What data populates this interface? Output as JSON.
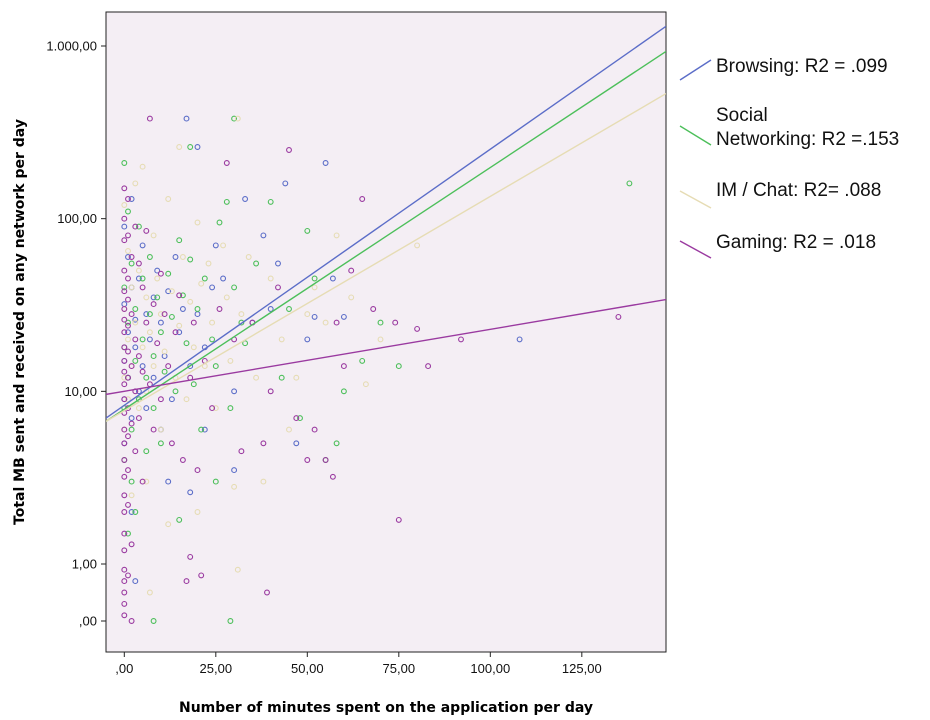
{
  "chart_data": {
    "type": "scatter",
    "title": "",
    "xlabel": "Number of minutes spent on the application per day",
    "ylabel": "Total MB sent and received on any network per day",
    "xlim": [
      -5,
      148
    ],
    "y_scale": "log",
    "xticks": [
      {
        "value": 0,
        "label": ",00"
      },
      {
        "value": 25,
        "label": "25,00"
      },
      {
        "value": 50,
        "label": "50,00"
      },
      {
        "value": 75,
        "label": "75,00"
      },
      {
        "value": 100,
        "label": "100,00"
      },
      {
        "value": 125,
        "label": "125,00"
      }
    ],
    "yticks": [
      {
        "value": 0,
        "label": ",00"
      },
      {
        "value": 1,
        "label": "1,00"
      },
      {
        "value": 10,
        "label": "10,00"
      },
      {
        "value": 100,
        "label": "100,00"
      },
      {
        "value": 1000,
        "label": "1.000,00"
      }
    ],
    "grid": false,
    "legend_position": "right",
    "background": "#f4eef4",
    "series": [
      {
        "name": "Browsing",
        "legend_label": "Browsing: R2 = .099",
        "color": "#5b6dc8",
        "fit_line": {
          "x": [
            -5,
            148
          ],
          "y": [
            7.0,
            1300
          ]
        },
        "points": [
          [
            0,
            15
          ],
          [
            0,
            9
          ],
          [
            0,
            32
          ],
          [
            0,
            5
          ],
          [
            0,
            90
          ],
          [
            1,
            22
          ],
          [
            1,
            60
          ],
          [
            1,
            12
          ],
          [
            2,
            40
          ],
          [
            2,
            7
          ],
          [
            2,
            130
          ],
          [
            3,
            18
          ],
          [
            3,
            26
          ],
          [
            4,
            10
          ],
          [
            4,
            45
          ],
          [
            5,
            14
          ],
          [
            5,
            70
          ],
          [
            6,
            8
          ],
          [
            6,
            28
          ],
          [
            7,
            20
          ],
          [
            8,
            12
          ],
          [
            8,
            35
          ],
          [
            9,
            50
          ],
          [
            10,
            6
          ],
          [
            10,
            25
          ],
          [
            11,
            16
          ],
          [
            12,
            38
          ],
          [
            13,
            9
          ],
          [
            14,
            60
          ],
          [
            15,
            22
          ],
          [
            16,
            30
          ],
          [
            17,
            380
          ],
          [
            18,
            14
          ],
          [
            20,
            260
          ],
          [
            20,
            28
          ],
          [
            22,
            18
          ],
          [
            24,
            40
          ],
          [
            25,
            70
          ],
          [
            27,
            45
          ],
          [
            30,
            10
          ],
          [
            33,
            130
          ],
          [
            35,
            25
          ],
          [
            38,
            80
          ],
          [
            40,
            30
          ],
          [
            42,
            55
          ],
          [
            44,
            160
          ],
          [
            47,
            5
          ],
          [
            50,
            20
          ],
          [
            52,
            27
          ],
          [
            55,
            210
          ],
          [
            57,
            45
          ],
          [
            60,
            27
          ],
          [
            108,
            20
          ],
          [
            3,
            0.7
          ],
          [
            2,
            2
          ],
          [
            12,
            3
          ],
          [
            18,
            2.6
          ],
          [
            22,
            6
          ],
          [
            30,
            3.5
          ]
        ]
      },
      {
        "name": "Social Networking",
        "legend_label": "Social Networking: R2 =.153",
        "color": "#4cbf5a",
        "fit_line": {
          "x": [
            -5,
            148
          ],
          "y": [
            6.7,
            930
          ]
        },
        "points": [
          [
            0,
            210
          ],
          [
            0,
            40
          ],
          [
            0,
            18
          ],
          [
            0,
            8
          ],
          [
            0,
            4
          ],
          [
            1,
            110
          ],
          [
            1,
            25
          ],
          [
            1,
            12
          ],
          [
            2,
            55
          ],
          [
            2,
            6
          ],
          [
            2,
            3
          ],
          [
            3,
            30
          ],
          [
            3,
            15
          ],
          [
            4,
            90
          ],
          [
            4,
            9
          ],
          [
            5,
            45
          ],
          [
            5,
            20
          ],
          [
            6,
            12
          ],
          [
            6,
            4.5
          ],
          [
            7,
            60
          ],
          [
            7,
            28
          ],
          [
            8,
            16
          ],
          [
            8,
            8
          ],
          [
            9,
            35
          ],
          [
            10,
            22
          ],
          [
            10,
            5
          ],
          [
            11,
            13
          ],
          [
            12,
            48
          ],
          [
            13,
            27
          ],
          [
            14,
            10
          ],
          [
            15,
            75
          ],
          [
            16,
            36
          ],
          [
            17,
            19
          ],
          [
            18,
            260
          ],
          [
            18,
            58
          ],
          [
            19,
            11
          ],
          [
            20,
            30
          ],
          [
            21,
            6
          ],
          [
            22,
            45
          ],
          [
            24,
            20
          ],
          [
            25,
            14
          ],
          [
            26,
            95
          ],
          [
            28,
            125
          ],
          [
            29,
            8
          ],
          [
            29,
            0
          ],
          [
            30,
            380
          ],
          [
            30,
            40
          ],
          [
            32,
            25
          ],
          [
            33,
            19
          ],
          [
            36,
            55
          ],
          [
            40,
            125
          ],
          [
            43,
            12
          ],
          [
            45,
            30
          ],
          [
            48,
            7
          ],
          [
            50,
            85
          ],
          [
            52,
            45
          ],
          [
            55,
            4
          ],
          [
            58,
            5
          ],
          [
            60,
            10
          ],
          [
            65,
            15
          ],
          [
            70,
            25
          ],
          [
            75,
            14
          ],
          [
            138,
            160
          ],
          [
            1,
            1.5
          ],
          [
            3,
            2
          ],
          [
            8,
            0
          ],
          [
            15,
            1.8
          ],
          [
            25,
            3
          ]
        ]
      },
      {
        "name": "IM / Chat",
        "legend_label": "IM / Chat: R2= .088",
        "color": "#e6dcb4",
        "fit_line": {
          "x": [
            -5,
            148
          ],
          "y": [
            6.7,
            530
          ]
        },
        "points": [
          [
            0,
            120
          ],
          [
            0,
            30
          ],
          [
            0,
            12
          ],
          [
            0,
            6
          ],
          [
            1,
            65
          ],
          [
            1,
            20
          ],
          [
            1,
            9
          ],
          [
            2,
            40
          ],
          [
            2,
            14
          ],
          [
            3,
            160
          ],
          [
            3,
            25
          ],
          [
            4,
            8
          ],
          [
            4,
            50
          ],
          [
            5,
            18
          ],
          [
            5,
            200
          ],
          [
            6,
            10
          ],
          [
            6,
            35
          ],
          [
            7,
            22
          ],
          [
            7,
            0.5
          ],
          [
            8,
            14
          ],
          [
            8,
            80
          ],
          [
            9,
            45
          ],
          [
            10,
            28
          ],
          [
            10,
            6
          ],
          [
            11,
            17
          ],
          [
            12,
            130
          ],
          [
            13,
            38
          ],
          [
            14,
            12
          ],
          [
            15,
            260
          ],
          [
            15,
            24
          ],
          [
            16,
            60
          ],
          [
            17,
            9
          ],
          [
            18,
            33
          ],
          [
            19,
            18
          ],
          [
            20,
            95
          ],
          [
            21,
            42
          ],
          [
            22,
            14
          ],
          [
            23,
            55
          ],
          [
            24,
            25
          ],
          [
            25,
            8
          ],
          [
            27,
            70
          ],
          [
            28,
            35
          ],
          [
            29,
            15
          ],
          [
            31,
            380
          ],
          [
            31,
            0.9
          ],
          [
            32,
            28
          ],
          [
            34,
            60
          ],
          [
            36,
            12
          ],
          [
            38,
            3
          ],
          [
            40,
            45
          ],
          [
            43,
            20
          ],
          [
            45,
            6
          ],
          [
            47,
            12
          ],
          [
            50,
            28
          ],
          [
            52,
            40
          ],
          [
            55,
            25
          ],
          [
            58,
            80
          ],
          [
            62,
            35
          ],
          [
            66,
            11
          ],
          [
            70,
            20
          ],
          [
            80,
            70
          ],
          [
            2,
            2.5
          ],
          [
            6,
            3
          ],
          [
            12,
            1.7
          ],
          [
            20,
            2
          ],
          [
            30,
            2.8
          ]
        ]
      },
      {
        "name": "Gaming",
        "legend_label": "Gaming: R2 = .018",
        "color": "#9a3aa0",
        "fit_line": {
          "x": [
            -5,
            148
          ],
          "y": [
            9.6,
            34
          ]
        },
        "points": [
          [
            0,
            150
          ],
          [
            0,
            100
          ],
          [
            0,
            75
          ],
          [
            0,
            50
          ],
          [
            0,
            38
          ],
          [
            0,
            30
          ],
          [
            0,
            26
          ],
          [
            0,
            22
          ],
          [
            0,
            18
          ],
          [
            0,
            15
          ],
          [
            0,
            13
          ],
          [
            0,
            11
          ],
          [
            0,
            9
          ],
          [
            0,
            7.5
          ],
          [
            0,
            6
          ],
          [
            0,
            5
          ],
          [
            0,
            4
          ],
          [
            0,
            3.2
          ],
          [
            0,
            2.5
          ],
          [
            0,
            2
          ],
          [
            0,
            1.5
          ],
          [
            0,
            1.2
          ],
          [
            0,
            0.9
          ],
          [
            0,
            0.7
          ],
          [
            0,
            0.5
          ],
          [
            0,
            0.3
          ],
          [
            0,
            0.1
          ],
          [
            1,
            130
          ],
          [
            1,
            80
          ],
          [
            1,
            45
          ],
          [
            1,
            34
          ],
          [
            1,
            24
          ],
          [
            1,
            17
          ],
          [
            1,
            12
          ],
          [
            1,
            8
          ],
          [
            1,
            5.5
          ],
          [
            1,
            3.5
          ],
          [
            1,
            2.2
          ],
          [
            1,
            0.8
          ],
          [
            2,
            60
          ],
          [
            2,
            28
          ],
          [
            2,
            14
          ],
          [
            2,
            6.5
          ],
          [
            2,
            1.3
          ],
          [
            2,
            0
          ],
          [
            3,
            90
          ],
          [
            3,
            20
          ],
          [
            3,
            10
          ],
          [
            3,
            4.5
          ],
          [
            4,
            55
          ],
          [
            4,
            16
          ],
          [
            4,
            7
          ],
          [
            5,
            40
          ],
          [
            5,
            13
          ],
          [
            5,
            3
          ],
          [
            6,
            85
          ],
          [
            6,
            25
          ],
          [
            7,
            380
          ],
          [
            7,
            11
          ],
          [
            8,
            32
          ],
          [
            8,
            6
          ],
          [
            9,
            19
          ],
          [
            10,
            48
          ],
          [
            10,
            9
          ],
          [
            11,
            28
          ],
          [
            12,
            14
          ],
          [
            13,
            5
          ],
          [
            14,
            22
          ],
          [
            15,
            36
          ],
          [
            16,
            4
          ],
          [
            17,
            0.7
          ],
          [
            18,
            12
          ],
          [
            18,
            1.1
          ],
          [
            19,
            25
          ],
          [
            20,
            3.5
          ],
          [
            21,
            0.8
          ],
          [
            22,
            15
          ],
          [
            24,
            8
          ],
          [
            26,
            30
          ],
          [
            28,
            210
          ],
          [
            30,
            20
          ],
          [
            32,
            4.5
          ],
          [
            35,
            25
          ],
          [
            38,
            5
          ],
          [
            39,
            0.5
          ],
          [
            40,
            10
          ],
          [
            42,
            40
          ],
          [
            45,
            250
          ],
          [
            47,
            7
          ],
          [
            50,
            4
          ],
          [
            52,
            6
          ],
          [
            55,
            4
          ],
          [
            57,
            3.2
          ],
          [
            58,
            25
          ],
          [
            60,
            14
          ],
          [
            62,
            50
          ],
          [
            65,
            130
          ],
          [
            68,
            30
          ],
          [
            74,
            25
          ],
          [
            75,
            1.8
          ],
          [
            80,
            23
          ],
          [
            83,
            14
          ],
          [
            92,
            20
          ],
          [
            135,
            27
          ]
        ]
      }
    ]
  }
}
